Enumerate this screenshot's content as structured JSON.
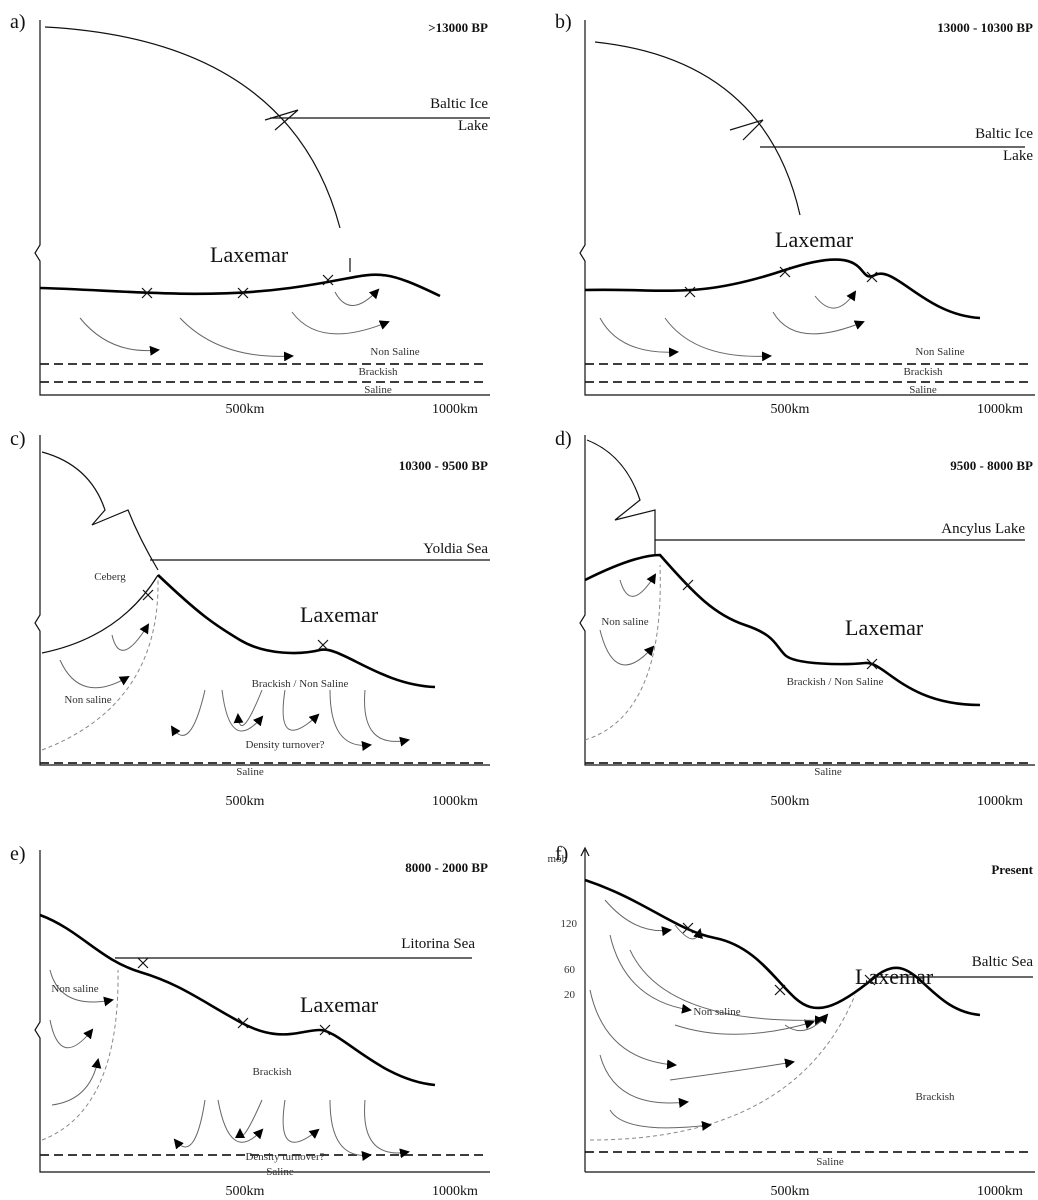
{
  "panels": [
    {
      "letter": "a)",
      "period": ">13000 BP",
      "water_body": [
        "Baltic Ice",
        "Lake"
      ],
      "site": "Laxemar",
      "zones": [
        "Non Saline",
        "Brackish",
        "Saline"
      ],
      "axis": [
        "500km",
        "1000km"
      ]
    },
    {
      "letter": "b)",
      "period": "13000 - 10300 BP",
      "water_body": [
        "Baltic Ice",
        "Lake"
      ],
      "site": "Laxemar",
      "zones": [
        "Non Saline",
        "Brackish",
        "Saline"
      ],
      "axis": [
        "500km",
        "1000km"
      ]
    },
    {
      "letter": "c)",
      "period": "10300 - 9500 BP",
      "water_body": [
        "Yoldia Sea"
      ],
      "ice": "Ceberg",
      "site": "Laxemar",
      "zones": [
        "Non saline",
        "Brackish / Non Saline",
        "Density turnover?",
        "Saline"
      ],
      "axis": [
        "500km",
        "1000km"
      ]
    },
    {
      "letter": "d)",
      "period": "9500 - 8000 BP",
      "water_body": [
        "Ancylus Lake"
      ],
      "site": "Laxemar",
      "zones": [
        "Non saline",
        "Brackish / Non Saline",
        "Saline"
      ],
      "axis": [
        "500km",
        "1000km"
      ]
    },
    {
      "letter": "e)",
      "period": "8000 - 2000 BP",
      "water_body": [
        "Litorina Sea"
      ],
      "site": "Laxemar",
      "zones": [
        "Non saline",
        "Brackish",
        "Density turnover?",
        "Saline"
      ],
      "axis": [
        "500km",
        "1000km"
      ]
    },
    {
      "letter": "f)",
      "period": "Present",
      "water_body": [
        "Baltic Sea"
      ],
      "site": "Laxemar",
      "zones": [
        "Non saline",
        "Brackish",
        "Saline"
      ],
      "axis": [
        "500km",
        "1000km"
      ],
      "elevation_unit": "möh",
      "elevation_ticks": [
        "120",
        "60",
        "20"
      ]
    }
  ]
}
